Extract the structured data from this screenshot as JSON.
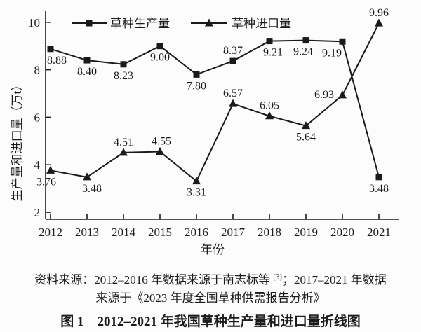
{
  "chart_data": {
    "type": "line",
    "title": "",
    "xlabel": "年份",
    "ylabel": "生产量和进口量（万t）",
    "categories": [
      2012,
      2013,
      2014,
      2015,
      2016,
      2017,
      2018,
      2019,
      2020,
      2021
    ],
    "y_ticks": [
      2,
      4,
      6,
      8,
      10
    ],
    "ylim": [
      1.7,
      10.4
    ],
    "grid": false,
    "legend_position": "top-inside",
    "line_color": "#1a1a1a",
    "series": [
      {
        "name": "草种生产量",
        "marker": "square",
        "values": [
          8.88,
          8.4,
          8.23,
          9.0,
          7.8,
          8.37,
          9.21,
          9.24,
          9.19,
          3.48
        ],
        "label_pos": [
          "below",
          "below",
          "below",
          "below",
          "below",
          "above",
          "below",
          "below",
          "below",
          "below"
        ],
        "label_dx": [
          9,
          0,
          0,
          0,
          0,
          0,
          5,
          -4,
          -15,
          0
        ]
      },
      {
        "name": "草种进口量",
        "marker": "triangle",
        "values": [
          3.76,
          3.48,
          4.51,
          4.55,
          3.31,
          6.57,
          6.05,
          5.64,
          6.93,
          9.96
        ],
        "label_pos": [
          "below",
          "below",
          "above",
          "above",
          "below",
          "above",
          "above",
          "below",
          "left",
          "above"
        ],
        "label_dx": [
          -6,
          7,
          0,
          2,
          0,
          0,
          0,
          0,
          0,
          0
        ]
      }
    ]
  },
  "caption": {
    "source_line1_pre": "资料来源：2012–2016 年数据来源于南志标等 ",
    "source_ref": "[3]",
    "source_line1_post": "；2017–2021 年数据",
    "source_line2": "来源于《2023 年度全国草种供需报告分析》",
    "figure_title": "图 1　2012–2021 年我国草种生产量和进口量折线图"
  }
}
